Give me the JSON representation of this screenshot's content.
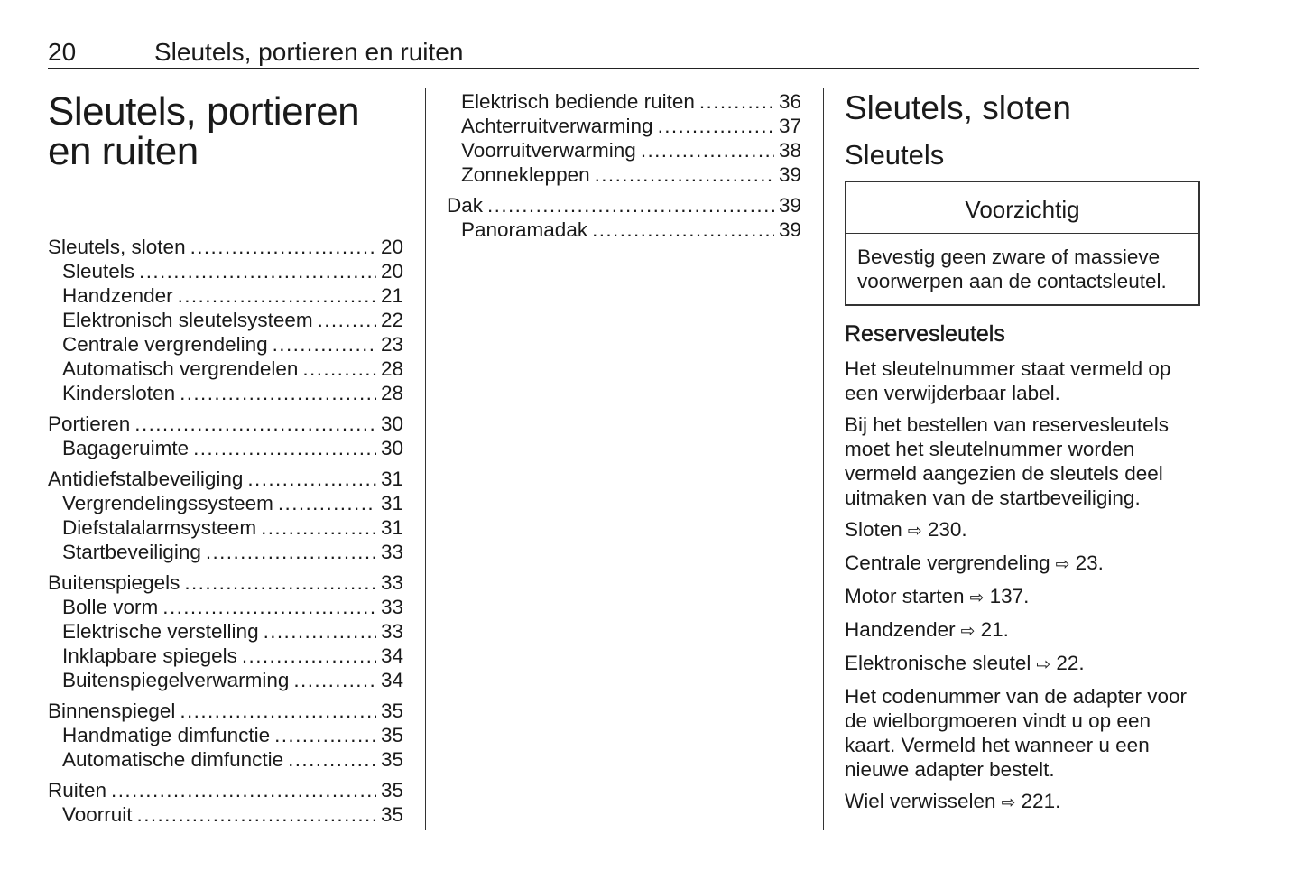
{
  "header": {
    "page_number": "20",
    "chapter_title": "Sleutels, portieren en ruiten"
  },
  "left": {
    "title_line1": "Sleutels, portieren",
    "title_line2": "en ruiten",
    "toc": [
      {
        "label": "Sleutels, sloten",
        "page": "20",
        "level": 0
      },
      {
        "label": "Sleutels",
        "page": "20",
        "level": 1
      },
      {
        "label": "Handzender",
        "page": "21",
        "level": 1
      },
      {
        "label": "Elektronisch sleutelsysteem",
        "page": "22",
        "level": 1
      },
      {
        "label": "Centrale vergrendeling",
        "page": "23",
        "level": 1
      },
      {
        "label": "Automatisch vergrendelen",
        "page": "28",
        "level": 1
      },
      {
        "label": "Kindersloten",
        "page": "28",
        "level": 1
      },
      {
        "label": "Portieren",
        "page": "30",
        "level": 0
      },
      {
        "label": "Bagageruimte",
        "page": "30",
        "level": 1
      },
      {
        "label": "Antidiefstalbeveiliging",
        "page": "31",
        "level": 0
      },
      {
        "label": "Vergrendelingssysteem",
        "page": "31",
        "level": 1
      },
      {
        "label": "Diefstalalarmsysteem",
        "page": "31",
        "level": 1
      },
      {
        "label": "Startbeveiliging",
        "page": "33",
        "level": 1
      },
      {
        "label": "Buitenspiegels",
        "page": "33",
        "level": 0
      },
      {
        "label": "Bolle vorm",
        "page": "33",
        "level": 1
      },
      {
        "label": "Elektrische verstelling",
        "page": "33",
        "level": 1
      },
      {
        "label": "Inklapbare spiegels",
        "page": "34",
        "level": 1
      },
      {
        "label": "Buitenspiegelverwarming",
        "page": "34",
        "level": 1
      },
      {
        "label": "Binnenspiegel",
        "page": "35",
        "level": 0
      },
      {
        "label": "Handmatige dimfunctie",
        "page": "35",
        "level": 1
      },
      {
        "label": "Automatische dimfunctie",
        "page": "35",
        "level": 1
      },
      {
        "label": "Ruiten",
        "page": "35",
        "level": 0
      },
      {
        "label": "Voorruit",
        "page": "35",
        "level": 1
      }
    ]
  },
  "middle": {
    "toc": [
      {
        "label": "Elektrisch bediende ruiten",
        "page": "36",
        "level": 1
      },
      {
        "label": "Achterruitverwarming",
        "page": "37",
        "level": 1
      },
      {
        "label": "Voorruitverwarming",
        "page": "38",
        "level": 1
      },
      {
        "label": "Zonnekleppen",
        "page": "39",
        "level": 1
      },
      {
        "label": "Dak",
        "page": "39",
        "level": 0
      },
      {
        "label": "Panoramadak",
        "page": "39",
        "level": 1
      }
    ]
  },
  "right": {
    "heading": "Sleutels, sloten",
    "subheading": "Sleutels",
    "caution": {
      "title": "Voorzichtig",
      "text": "Bevestig geen zware of massieve voorwerpen aan de contactsleutel."
    },
    "section_heading": "Reservesleutels",
    "arrow_icon": "outlined-right-arrow",
    "paragraphs": [
      {
        "text": "Het sleutelnummer staat vermeld op een verwijderbaar label."
      },
      {
        "text": "Bij het bestellen van reservesleutels moet het sleutelnummer worden vermeld aangezien de sleutels deel uitmaken van de startbeveiliging."
      },
      {
        "text": "Sloten",
        "ref": "230."
      },
      {
        "text": "Centrale vergrendeling",
        "ref": "23."
      },
      {
        "text": "Motor starten",
        "ref": "137."
      },
      {
        "text": "Handzender",
        "ref": "21."
      },
      {
        "text": "Elektronische sleutel",
        "ref": "22."
      },
      {
        "text": "Het codenummer van de adapter voor de wielborgmoeren vindt u op een kaart. Vermeld het wanneer u een nieuwe adapter bestelt."
      },
      {
        "text": "Wiel verwisselen",
        "ref": "221."
      }
    ]
  }
}
